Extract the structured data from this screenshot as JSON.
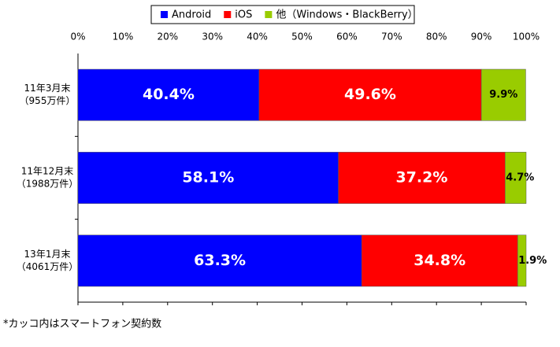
{
  "chart_data": {
    "type": "stacked_bar_horizontal",
    "categories": [
      [
        "11年3月末",
        "（955万件）"
      ],
      [
        "11年12月末",
        "（1988万件）"
      ],
      [
        "13年1月末",
        "（4061万件）"
      ]
    ],
    "series": [
      {
        "name": "Android",
        "color": "#0000ff",
        "values": [
          40.4,
          58.1,
          63.3
        ],
        "value_labels": [
          "40.4%",
          "58.1%",
          "63.3%"
        ]
      },
      {
        "name": "iOS",
        "color": "#ff0000",
        "values": [
          49.6,
          37.2,
          34.8
        ],
        "value_labels": [
          "49.6%",
          "37.2%",
          "34.8%"
        ]
      },
      {
        "name": "他（Windows・BlackBerry）",
        "color": "#99cc00",
        "values": [
          9.9,
          4.7,
          1.9
        ],
        "value_labels": [
          "9.9%",
          "4.7%",
          "1.9%"
        ]
      }
    ],
    "xlim": [
      0,
      100
    ],
    "xticks": [
      {
        "value": 0,
        "label": "0%"
      },
      {
        "value": 10,
        "label": "10%"
      },
      {
        "value": 20,
        "label": "20%"
      },
      {
        "value": 30,
        "label": "30%"
      },
      {
        "value": 40,
        "label": "40%"
      },
      {
        "value": 50,
        "label": "50%"
      },
      {
        "value": 60,
        "label": "60%"
      },
      {
        "value": 70,
        "label": "70%"
      },
      {
        "value": 80,
        "label": "80%"
      },
      {
        "value": 90,
        "label": "90%"
      },
      {
        "value": 100,
        "label": "100%"
      }
    ],
    "legend": "top",
    "footnote": "*カッコ内はスマートフォン契約数"
  }
}
